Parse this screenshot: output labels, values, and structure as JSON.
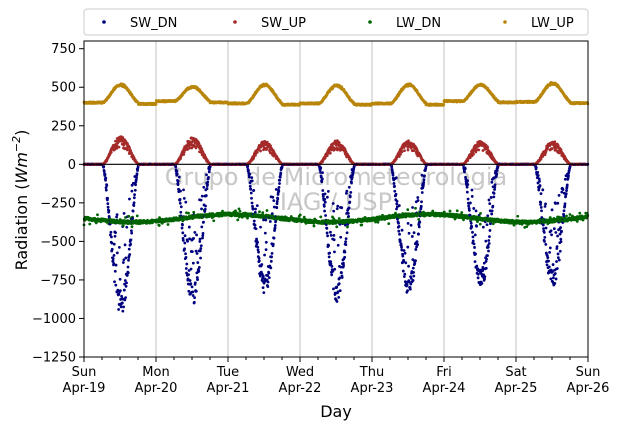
{
  "chart_data": {
    "type": "scatter",
    "xlabel": "Day",
    "ylabel_main": "Radiation (",
    "ylabel_unit_base": "Wm",
    "ylabel_unit_exp": "−2",
    "ylabel_close": ")",
    "ylim": [
      -1250,
      800
    ],
    "yticks": [
      -1250,
      -1000,
      -750,
      -500,
      -250,
      0,
      250,
      500,
      750
    ],
    "ytick_labels": [
      "−1250",
      "−1000",
      "−750",
      "−500",
      "−250",
      "0",
      "250",
      "500",
      "750"
    ],
    "xlim": [
      0,
      7
    ],
    "xticks": [
      {
        "day": 0,
        "line1": "Sun",
        "line2": "Apr-19"
      },
      {
        "day": 1,
        "line1": "Mon",
        "line2": "Apr-20"
      },
      {
        "day": 2,
        "line1": "Tue",
        "line2": "Apr-21"
      },
      {
        "day": 3,
        "line1": "Wed",
        "line2": "Apr-22"
      },
      {
        "day": 4,
        "line1": "Thu",
        "line2": "Apr-23"
      },
      {
        "day": 5,
        "line1": "Fri",
        "line2": "Apr-24"
      },
      {
        "day": 6,
        "line1": "Sat",
        "line2": "Apr-25"
      },
      {
        "day": 7,
        "line1": "Sun",
        "line2": "Apr-26"
      }
    ],
    "grid": "vertical",
    "zero_line": true,
    "legend_position": "top, above plot",
    "watermark": [
      "Grupo de Micrometeorologia",
      "IAG / USP"
    ],
    "series": [
      {
        "name": "SW_DN",
        "color": "#00007f",
        "daily_min": [
          -980,
          -910,
          -840,
          -890,
          -850,
          -800,
          -800
        ],
        "daily_peak_hour": [
          12.5,
          12.3,
          12.3,
          12.4,
          12.3,
          12.5,
          12.3
        ]
      },
      {
        "name": "SW_UP",
        "color": "#a52a2a",
        "daily_max": [
          180,
          175,
          150,
          155,
          155,
          150,
          150
        ]
      },
      {
        "name": "LW_DN",
        "color": "#006400",
        "typical_range": [
          -420,
          -310
        ]
      },
      {
        "name": "LW_UP",
        "color": "#b8860b",
        "night_level": [
          400,
          410,
          395,
          395,
          395,
          410,
          405
        ],
        "daily_max": [
          520,
          505,
          520,
          515,
          520,
          520,
          530
        ]
      }
    ]
  }
}
